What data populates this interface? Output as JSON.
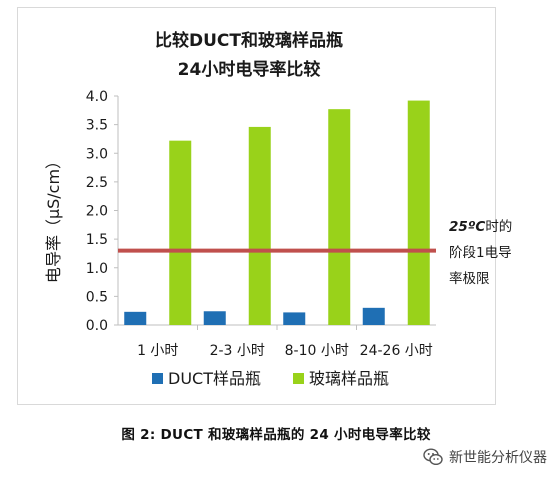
{
  "chart_data": {
    "type": "bar",
    "title_line1": "比较DUCT和玻璃样品瓶",
    "title_line2": "24小时电导率比较",
    "categories": [
      "1 小时",
      "2-3 小时",
      "8-10 小时",
      "24-26 小时"
    ],
    "series": [
      {
        "name": "DUCT样品瓶",
        "values": [
          0.23,
          0.24,
          0.22,
          0.3
        ],
        "color": "#1f6fb4"
      },
      {
        "name": "玻璃样品瓶",
        "values": [
          3.22,
          3.46,
          3.77,
          3.92
        ],
        "color": "#99d21a"
      }
    ],
    "ylabel": "电导率（μS/cm）",
    "ylim": [
      0,
      4.0
    ],
    "yticks": [
      "0.0",
      "0.5",
      "1.0",
      "1.5",
      "2.0",
      "2.5",
      "3.0",
      "3.5",
      "4.0"
    ],
    "grid": false,
    "legend_position": "bottom",
    "reference_line": {
      "value": 1.3,
      "color": "#c0504d",
      "label_line1_bold": "25ºC",
      "label_line1_rest": "时的",
      "label_line2": "阶段1电导",
      "label_line3": "率极限"
    }
  },
  "caption": "图  2: DUCT  和玻璃样品瓶的  24  小时电导率比较",
  "watermark": {
    "text": "新世能分析仪器",
    "icon": "wechat-icon"
  }
}
